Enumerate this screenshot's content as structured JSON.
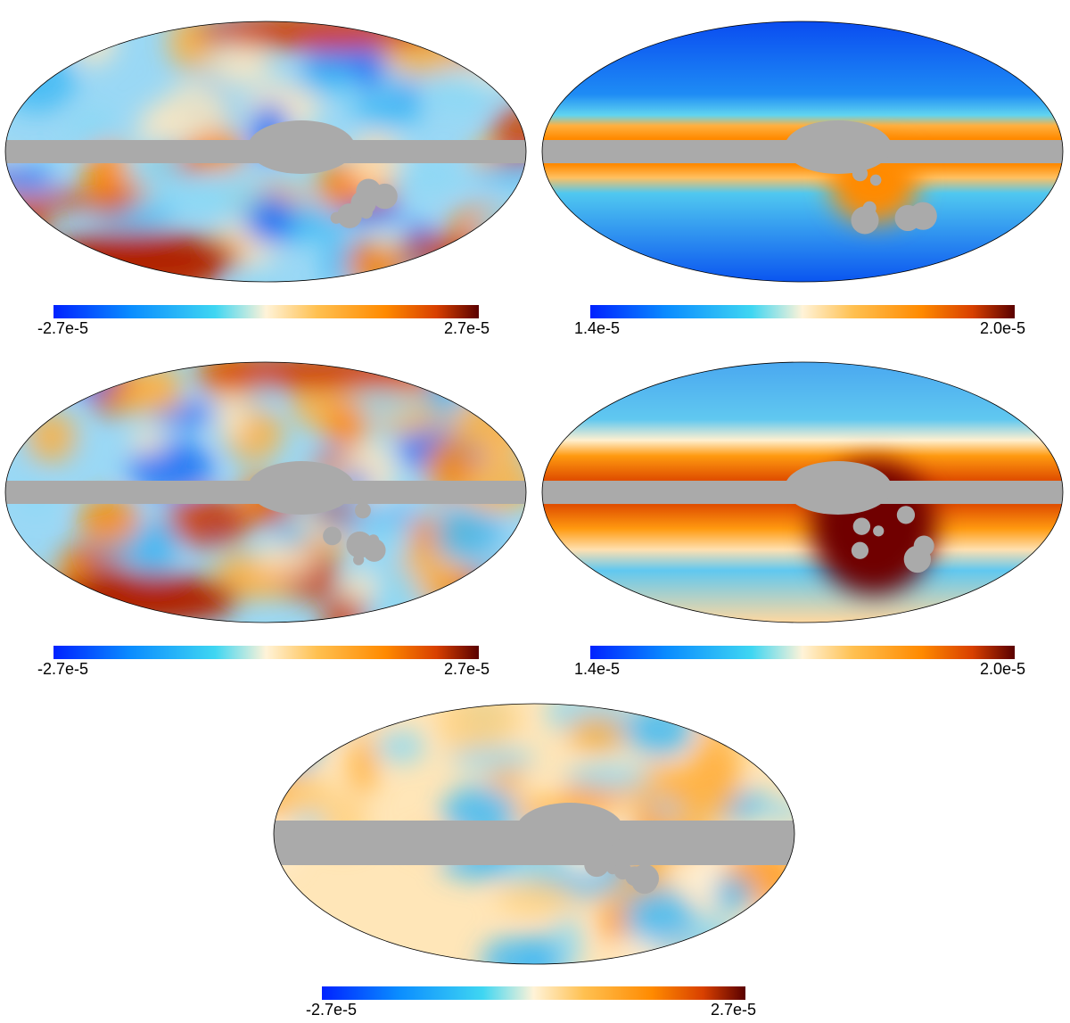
{
  "panels": [
    {
      "colorbar": {
        "min_label": "-2.7e-5",
        "max_label": "2.7e-5"
      }
    },
    {
      "colorbar": {
        "min_label": "1.4e-5",
        "max_label": "2.0e-5"
      }
    },
    {
      "colorbar": {
        "min_label": "-2.7e-5",
        "max_label": "2.7e-5"
      }
    },
    {
      "colorbar": {
        "min_label": "1.4e-5",
        "max_label": "2.0e-5"
      }
    },
    {
      "colorbar": {
        "min_label": "-2.7e-5",
        "max_label": "2.7e-5"
      }
    }
  ]
}
